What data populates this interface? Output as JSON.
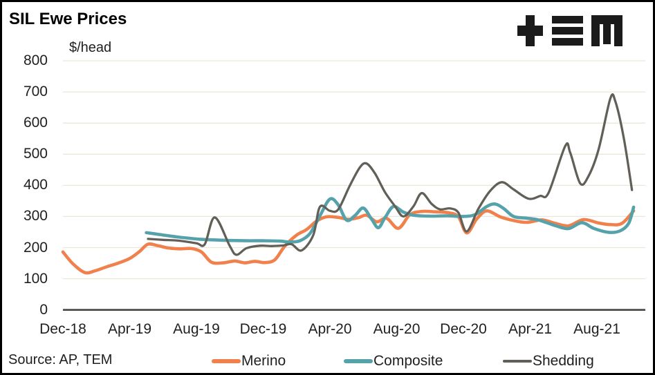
{
  "header": {
    "title": "SIL Ewe Prices",
    "logo_icon": "tem-logo"
  },
  "source": "Source: AP, TEM",
  "colors": {
    "merino": "#F0804C",
    "composite": "#56A2AA",
    "shedding": "#615F58",
    "gridline": "#E9E7DA",
    "axis": "#44433E",
    "text": "#1F1F1F",
    "logo": "#1B1B1B",
    "background": "#FFFFFF"
  },
  "legend": {
    "position": "bottom",
    "items": [
      {
        "label": "Merino",
        "color": "#F0804C"
      },
      {
        "label": "Composite",
        "color": "#56A2AA"
      },
      {
        "label": "Shedding",
        "color": "#615F58"
      }
    ]
  },
  "chart_data": {
    "type": "line",
    "title": "SIL Ewe Prices",
    "unit_label": "$/head",
    "ylabel": "$/head",
    "xlabel": "",
    "ylim": [
      0,
      800
    ],
    "y_ticks": [
      0,
      100,
      200,
      300,
      400,
      500,
      600,
      700,
      800
    ],
    "x_unit": "months since Dec-2018",
    "x_range_months": [
      0,
      34.9
    ],
    "x_ticks": [
      {
        "label": "Dec-18",
        "month": 0
      },
      {
        "label": "Apr-19",
        "month": 4
      },
      {
        "label": "Aug-19",
        "month": 8
      },
      {
        "label": "Dec-19",
        "month": 12
      },
      {
        "label": "Apr-20",
        "month": 16
      },
      {
        "label": "Aug-20",
        "month": 20
      },
      {
        "label": "Dec-20",
        "month": 24
      },
      {
        "label": "Apr-21",
        "month": 28
      },
      {
        "label": "Aug-21",
        "month": 32
      }
    ],
    "grid": "horizontal",
    "legend_position": "bottom",
    "series": [
      {
        "name": "Merino",
        "color": "#F0804C",
        "line_width": 4.6,
        "points": [
          [
            0,
            186
          ],
          [
            0.6,
            148
          ],
          [
            1.3,
            120
          ],
          [
            1.9,
            125
          ],
          [
            2.6,
            138
          ],
          [
            3.3,
            150
          ],
          [
            4,
            165
          ],
          [
            4.6,
            188
          ],
          [
            5.1,
            211
          ],
          [
            5.7,
            206
          ],
          [
            6.3,
            199
          ],
          [
            7,
            196
          ],
          [
            7.7,
            197
          ],
          [
            8.3,
            186
          ],
          [
            8.9,
            153
          ],
          [
            9.6,
            151
          ],
          [
            10.3,
            157
          ],
          [
            10.9,
            151
          ],
          [
            11.5,
            156
          ],
          [
            12.1,
            152
          ],
          [
            12.7,
            161
          ],
          [
            13.3,
            205
          ],
          [
            14,
            240
          ],
          [
            14.6,
            258
          ],
          [
            15.2,
            285
          ],
          [
            15.8,
            299
          ],
          [
            16.5,
            297
          ],
          [
            17.1,
            291
          ],
          [
            17.7,
            296
          ],
          [
            18.2,
            304
          ],
          [
            18.8,
            283
          ],
          [
            19.4,
            294
          ],
          [
            20.1,
            262
          ],
          [
            20.8,
            306
          ],
          [
            21.5,
            316
          ],
          [
            22.3,
            315
          ],
          [
            23.1,
            312
          ],
          [
            23.7,
            299
          ],
          [
            24.2,
            247
          ],
          [
            24.8,
            292
          ],
          [
            25.4,
            318
          ],
          [
            26.2,
            299
          ],
          [
            27,
            287
          ],
          [
            27.8,
            281
          ],
          [
            28.7,
            289
          ],
          [
            29.5,
            278
          ],
          [
            30.3,
            270
          ],
          [
            31.2,
            290
          ],
          [
            32.1,
            279
          ],
          [
            32.8,
            274
          ],
          [
            33.5,
            278
          ],
          [
            34.2,
            318
          ]
        ]
      },
      {
        "name": "Composite",
        "color": "#56A2AA",
        "line_width": 4.6,
        "points": [
          [
            5,
            248
          ],
          [
            5.8,
            242
          ],
          [
            6.6,
            236
          ],
          [
            7.4,
            231
          ],
          [
            8.2,
            227
          ],
          [
            9,
            225
          ],
          [
            10,
            223
          ],
          [
            11,
            222
          ],
          [
            12,
            222
          ],
          [
            13,
            221
          ],
          [
            13.6,
            218
          ],
          [
            14.2,
            222
          ],
          [
            14.8,
            245
          ],
          [
            15.4,
            302
          ],
          [
            16,
            356
          ],
          [
            16.5,
            337
          ],
          [
            17,
            288
          ],
          [
            17.5,
            303
          ],
          [
            18,
            327
          ],
          [
            18.5,
            291
          ],
          [
            18.9,
            264
          ],
          [
            19.3,
            296
          ],
          [
            19.8,
            332
          ],
          [
            20.4,
            314
          ],
          [
            21,
            304
          ],
          [
            22,
            301
          ],
          [
            23,
            302
          ],
          [
            24,
            300
          ],
          [
            24.7,
            306
          ],
          [
            25.4,
            332
          ],
          [
            25.9,
            340
          ],
          [
            26.4,
            326
          ],
          [
            27,
            300
          ],
          [
            27.7,
            295
          ],
          [
            28.4,
            290
          ],
          [
            29,
            280
          ],
          [
            29.6,
            269
          ],
          [
            30.3,
            261
          ],
          [
            31.1,
            280
          ],
          [
            31.8,
            262
          ],
          [
            32.7,
            249
          ],
          [
            33.4,
            254
          ],
          [
            33.9,
            278
          ],
          [
            34.2,
            330
          ]
        ]
      },
      {
        "name": "Shedding",
        "color": "#615F58",
        "line_width": 3.3,
        "points": [
          [
            5.1,
            228
          ],
          [
            6,
            225
          ],
          [
            7,
            222
          ],
          [
            8,
            214
          ],
          [
            8.5,
            211
          ],
          [
            9.1,
            297
          ],
          [
            10,
            205
          ],
          [
            10.4,
            177
          ],
          [
            11,
            198
          ],
          [
            11.8,
            206
          ],
          [
            12.5,
            205
          ],
          [
            13.2,
            207
          ],
          [
            13.7,
            211
          ],
          [
            14.3,
            191
          ],
          [
            15,
            240
          ],
          [
            15.4,
            331
          ],
          [
            16,
            318
          ],
          [
            16.5,
            323
          ],
          [
            17.2,
            400
          ],
          [
            17.8,
            458
          ],
          [
            18.2,
            470
          ],
          [
            18.7,
            438
          ],
          [
            19.3,
            378
          ],
          [
            19.9,
            333
          ],
          [
            20.4,
            300
          ],
          [
            21,
            332
          ],
          [
            21.5,
            375
          ],
          [
            22.1,
            340
          ],
          [
            22.6,
            323
          ],
          [
            23.2,
            326
          ],
          [
            23.7,
            312
          ],
          [
            24.2,
            252
          ],
          [
            24.9,
            325
          ],
          [
            25.6,
            382
          ],
          [
            26.3,
            410
          ],
          [
            27,
            387
          ],
          [
            27.9,
            357
          ],
          [
            28.6,
            366
          ],
          [
            29.1,
            376
          ],
          [
            30.1,
            526
          ],
          [
            30.4,
            505
          ],
          [
            31,
            406
          ],
          [
            31.5,
            430
          ],
          [
            32.1,
            515
          ],
          [
            32.8,
            678
          ],
          [
            33.1,
            670
          ],
          [
            33.6,
            555
          ],
          [
            34.1,
            385
          ]
        ]
      }
    ]
  }
}
